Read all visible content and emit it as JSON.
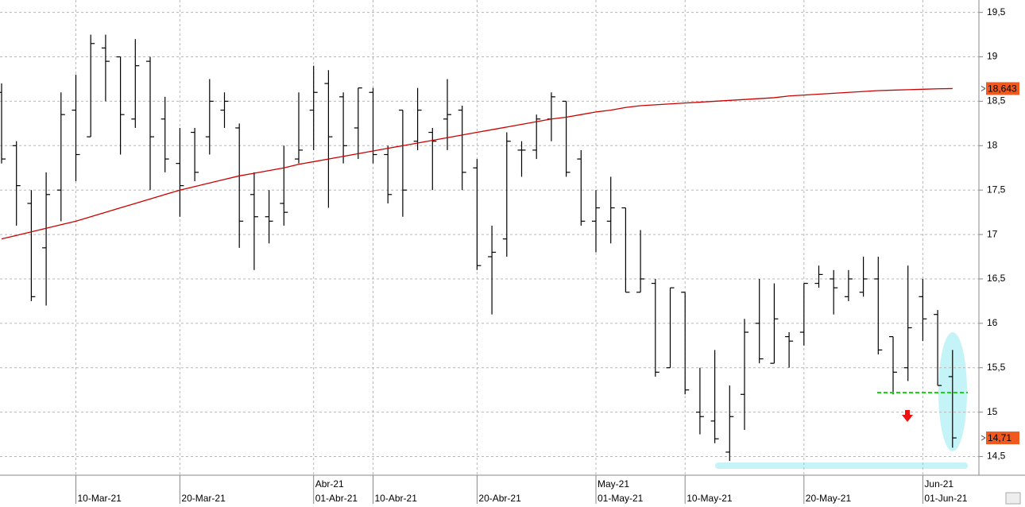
{
  "chart_data": {
    "type": "ohlc",
    "categories": [
      null,
      null,
      null,
      null,
      null,
      "10-Mar-21",
      null,
      null,
      null,
      null,
      null,
      null,
      "20-Mar-21",
      null,
      null,
      null,
      null,
      null,
      null,
      null,
      null,
      "01-Abr-21",
      null,
      null,
      null,
      "10-Abr-21",
      null,
      null,
      null,
      null,
      null,
      null,
      "20-Abr-21",
      null,
      null,
      null,
      null,
      null,
      null,
      null,
      "01-May-21",
      null,
      null,
      null,
      null,
      null,
      "10-May-21",
      null,
      null,
      null,
      null,
      null,
      null,
      null,
      "20-May-21",
      null,
      null,
      null,
      null,
      null,
      null,
      null,
      "01-Jun-21",
      null,
      null
    ],
    "months": [
      null,
      null,
      null,
      null,
      null,
      null,
      null,
      null,
      null,
      null,
      null,
      null,
      null,
      null,
      null,
      null,
      null,
      null,
      null,
      null,
      null,
      "Abr-21",
      null,
      null,
      null,
      null,
      null,
      null,
      null,
      null,
      null,
      null,
      null,
      null,
      null,
      null,
      null,
      null,
      null,
      null,
      "May-21",
      null,
      null,
      null,
      null,
      null,
      null,
      null,
      null,
      null,
      null,
      null,
      null,
      null,
      null,
      null,
      null,
      null,
      null,
      null,
      null,
      null,
      "Jun-21",
      null,
      null
    ],
    "ohlc": {
      "color": "#000000",
      "open": [
        18.6,
        18.0,
        17.35,
        16.85,
        17.5,
        18.4,
        18.1,
        19.1,
        19.0,
        18.3,
        18.95,
        18.3,
        17.8,
        18.15,
        18.1,
        18.4,
        18.2,
        17.45,
        17.2,
        17.35,
        17.85,
        18.4,
        18.7,
        18.55,
        18.2,
        18.6,
        17.9,
        18.4,
        18.05,
        18.15,
        18.3,
        18.4,
        17.75,
        16.75,
        16.95,
        17.95,
        17.95,
        18.3,
        18.5,
        17.85,
        17.15,
        17.15,
        17.3,
        16.35,
        16.45,
        15.5,
        16.35,
        15.0,
        14.9,
        14.55,
        15.2,
        16.0,
        15.55,
        15.85,
        15.9,
        16.45,
        16.5,
        16.3,
        16.35,
        16.5,
        15.85,
        15.5,
        16.3,
        16.1,
        15.4
      ],
      "high": [
        18.7,
        18.05,
        17.5,
        17.7,
        18.6,
        18.8,
        19.25,
        19.25,
        19.0,
        19.2,
        19.0,
        18.55,
        18.2,
        18.2,
        18.75,
        18.6,
        18.25,
        17.7,
        17.5,
        18.0,
        18.6,
        18.9,
        18.85,
        18.6,
        18.65,
        18.65,
        18.0,
        18.4,
        18.65,
        18.2,
        18.75,
        18.45,
        17.85,
        17.1,
        18.15,
        18.05,
        18.35,
        18.6,
        18.5,
        17.95,
        17.5,
        17.65,
        17.3,
        17.05,
        16.5,
        16.4,
        16.35,
        15.5,
        15.7,
        15.3,
        16.05,
        16.5,
        16.45,
        15.9,
        16.45,
        16.65,
        16.6,
        16.6,
        16.75,
        16.75,
        15.85,
        16.65,
        16.5,
        16.15,
        15.7
      ],
      "low": [
        17.8,
        17.1,
        16.25,
        16.2,
        17.15,
        17.6,
        18.1,
        18.5,
        17.9,
        18.2,
        17.5,
        17.7,
        17.2,
        17.6,
        17.9,
        18.2,
        16.85,
        16.6,
        16.9,
        17.1,
        17.8,
        17.95,
        17.3,
        17.8,
        17.85,
        17.8,
        17.35,
        17.2,
        17.95,
        17.5,
        17.95,
        17.5,
        16.6,
        16.1,
        16.75,
        17.65,
        17.85,
        18.05,
        17.65,
        17.1,
        16.8,
        16.9,
        16.35,
        16.35,
        15.4,
        15.5,
        15.2,
        14.75,
        14.65,
        14.45,
        14.8,
        15.55,
        15.55,
        15.5,
        15.75,
        16.4,
        16.1,
        16.25,
        16.3,
        15.65,
        15.2,
        15.35,
        15.8,
        15.3,
        14.6
      ],
      "close": [
        17.85,
        17.55,
        16.3,
        17.45,
        18.35,
        17.9,
        19.15,
        18.95,
        18.35,
        18.9,
        18.1,
        17.85,
        17.55,
        17.7,
        18.5,
        18.5,
        17.15,
        17.2,
        17.15,
        17.25,
        17.95,
        18.6,
        18.1,
        18.0,
        18.65,
        17.9,
        17.45,
        17.5,
        18.4,
        18.05,
        18.35,
        17.7,
        16.65,
        16.8,
        18.05,
        17.95,
        18.3,
        18.55,
        17.7,
        17.15,
        17.3,
        17.3,
        16.35,
        16.5,
        15.45,
        16.4,
        15.25,
        14.95,
        14.7,
        14.95,
        15.9,
        15.6,
        16.05,
        15.8,
        16.45,
        16.55,
        16.4,
        16.5,
        16.5,
        15.7,
        15.45,
        15.95,
        16.05,
        15.3,
        14.71
      ],
      "last_label": "14,71"
    },
    "moving_average": {
      "color": "#cc0000",
      "values": [
        16.95,
        16.99,
        17.03,
        17.07,
        17.11,
        17.15,
        17.2,
        17.25,
        17.3,
        17.35,
        17.4,
        17.45,
        17.5,
        17.54,
        17.58,
        17.62,
        17.66,
        17.69,
        17.72,
        17.75,
        17.79,
        17.82,
        17.85,
        17.88,
        17.91,
        17.94,
        17.97,
        18.0,
        18.03,
        18.06,
        18.09,
        18.12,
        18.15,
        18.18,
        18.21,
        18.24,
        18.27,
        18.3,
        18.32,
        18.35,
        18.38,
        18.4,
        18.43,
        18.45,
        18.46,
        18.47,
        18.48,
        18.49,
        18.5,
        18.51,
        18.52,
        18.53,
        18.54,
        18.56,
        18.57,
        18.58,
        18.59,
        18.6,
        18.61,
        18.62,
        18.625,
        18.63,
        18.635,
        18.64,
        18.643
      ],
      "last_label": "18,643"
    },
    "ylim": [
      14.29,
      19.64
    ],
    "yticks": [
      {
        "value": 14.5,
        "label": "14,5"
      },
      15,
      {
        "value": 15.5,
        "label": "15,5"
      },
      16,
      {
        "value": 16.5,
        "label": "16,5"
      },
      17,
      {
        "value": 17.5,
        "label": "17,5"
      },
      18,
      {
        "value": 18.5,
        "label": "18,5"
      },
      19,
      {
        "value": 19.5,
        "label": "19,5"
      }
    ],
    "grid": true
  }
}
